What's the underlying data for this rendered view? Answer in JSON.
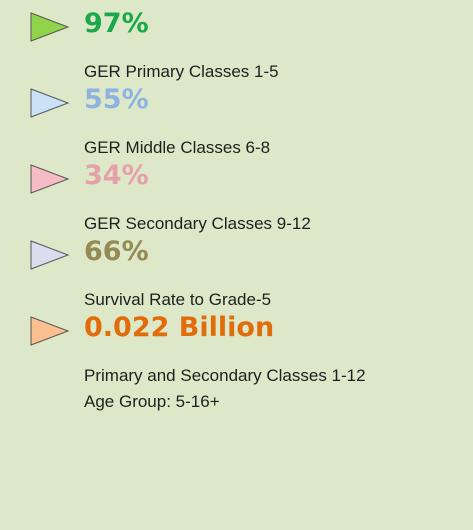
{
  "items": [
    {
      "value": "97%",
      "lines": [
        "GER Primary Classes 1-5"
      ],
      "value_color": "#1aa84a",
      "arrow_color": "#8fd44a"
    },
    {
      "value": "55%",
      "lines": [
        "GER Middle Classes 6-8"
      ],
      "value_color": "#8db3e2",
      "arrow_color": "#c9e2f7"
    },
    {
      "value": "34%",
      "lines": [
        "GER Secondary Classes 9-12"
      ],
      "value_color": "#e6a0a8",
      "arrow_color": "#f6bcc6"
    },
    {
      "value": "66%",
      "lines": [
        "Survival Rate to Grade-5"
      ],
      "value_color": "#948a54",
      "arrow_color": "#dcdcee"
    },
    {
      "value": "0.022 Billion",
      "lines": [
        "Primary and Secondary Classes 1-12",
        "Age Group: 5-16+"
      ],
      "value_color": "#e36c0a",
      "arrow_color": "#fbc08f"
    }
  ]
}
